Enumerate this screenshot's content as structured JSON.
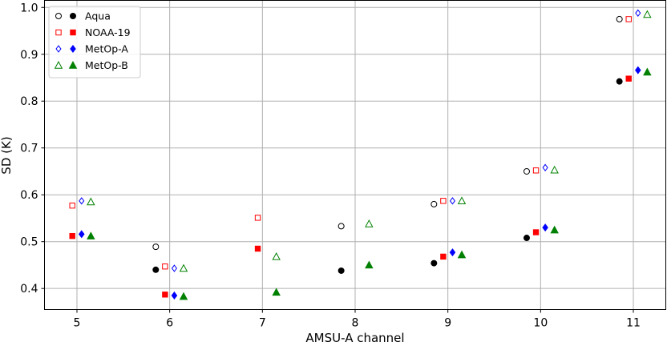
{
  "chart_data": {
    "type": "scatter",
    "title": "",
    "xlabel": "AMSU-A channel",
    "ylabel": "SD (K)",
    "xlim": [
      4.65,
      11.35
    ],
    "ylim": [
      0.355,
      1.015
    ],
    "xticks": [
      5,
      6,
      7,
      8,
      9,
      10,
      11
    ],
    "xtick_labels": [
      "5",
      "6",
      "7",
      "8",
      "9",
      "10",
      "11"
    ],
    "yticks": [
      0.4,
      0.5,
      0.6,
      0.7,
      0.8,
      0.9,
      1.0
    ],
    "ytick_labels": [
      "0.4",
      "0.5",
      "0.6",
      "0.7",
      "0.8",
      "0.9",
      "1.0"
    ],
    "grid": true,
    "legend_position": "top-left",
    "series": [
      {
        "name": "Aqua",
        "color": "#000000",
        "marker": "circle",
        "x_offset": -0.15,
        "open": [
          null,
          0.489,
          null,
          0.533,
          0.58,
          0.65,
          0.975
        ],
        "filled": [
          null,
          0.44,
          null,
          0.438,
          0.454,
          0.508,
          0.842
        ]
      },
      {
        "name": "NOAA-19",
        "color": "#ff0000",
        "marker": "square",
        "x_offset": -0.05,
        "open": [
          0.577,
          0.447,
          0.551,
          null,
          0.587,
          0.652,
          0.975
        ],
        "filled": [
          0.512,
          0.387,
          0.485,
          null,
          0.468,
          0.52,
          0.848
        ]
      },
      {
        "name": "MetOp-A",
        "color": "#0000ff",
        "marker": "diamond",
        "x_offset": 0.05,
        "open": [
          0.587,
          0.443,
          null,
          null,
          0.587,
          0.658,
          0.988
        ],
        "filled": [
          0.516,
          0.385,
          null,
          null,
          0.477,
          0.53,
          0.866
        ]
      },
      {
        "name": "MetOp-B",
        "color": "#008000",
        "marker": "triangle",
        "x_offset": 0.15,
        "open": [
          0.585,
          0.443,
          0.468,
          0.538,
          0.587,
          0.653,
          0.985
        ],
        "filled": [
          0.512,
          0.383,
          0.392,
          0.45,
          0.472,
          0.525,
          0.862
        ]
      }
    ]
  }
}
